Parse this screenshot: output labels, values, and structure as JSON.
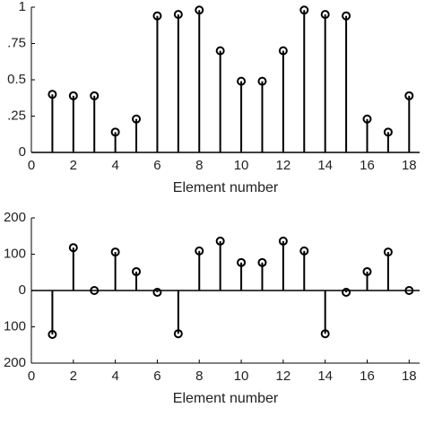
{
  "chart_data": [
    {
      "type": "stem",
      "x_label": "Element number",
      "x": [
        1,
        2,
        3,
        4,
        5,
        6,
        7,
        8,
        9,
        10,
        11,
        12,
        13,
        14,
        15,
        16,
        17,
        18
      ],
      "values": [
        0.4,
        0.39,
        0.39,
        0.14,
        0.23,
        0.94,
        0.95,
        0.98,
        0.7,
        0.49,
        0.49,
        0.7,
        0.98,
        0.95,
        0.94,
        0.23,
        0.14,
        0.39
      ],
      "color": "#000000",
      "xlim": [
        0,
        18.5
      ],
      "xticks": [
        0,
        2,
        4,
        6,
        8,
        10,
        12,
        14,
        16,
        18
      ],
      "ylim": [
        0,
        1
      ],
      "yticks": [
        0,
        {
          "value": 0.25,
          "label": ".25"
        },
        0.5,
        {
          "value": 0.75,
          "label": ".75"
        },
        1
      ]
    },
    {
      "type": "stem",
      "x_label": "Element number",
      "x": [
        1,
        2,
        3,
        4,
        5,
        6,
        7,
        8,
        9,
        10,
        11,
        12,
        13,
        14,
        15,
        16,
        17,
        18
      ],
      "values": [
        -121,
        118,
        0,
        106,
        52,
        -5,
        -119,
        109,
        136,
        77,
        77,
        136,
        109,
        -119,
        -5,
        52,
        106,
        0
      ],
      "color": "#000000",
      "xlim": [
        0,
        18.5
      ],
      "xticks": [
        0,
        2,
        4,
        6,
        8,
        10,
        12,
        14,
        16,
        18
      ],
      "ylim": [
        -200,
        200
      ],
      "yticks": [
        {
          "value": -200,
          "label": "200"
        },
        {
          "value": -100,
          "label": "100"
        },
        0,
        100,
        200
      ]
    }
  ]
}
